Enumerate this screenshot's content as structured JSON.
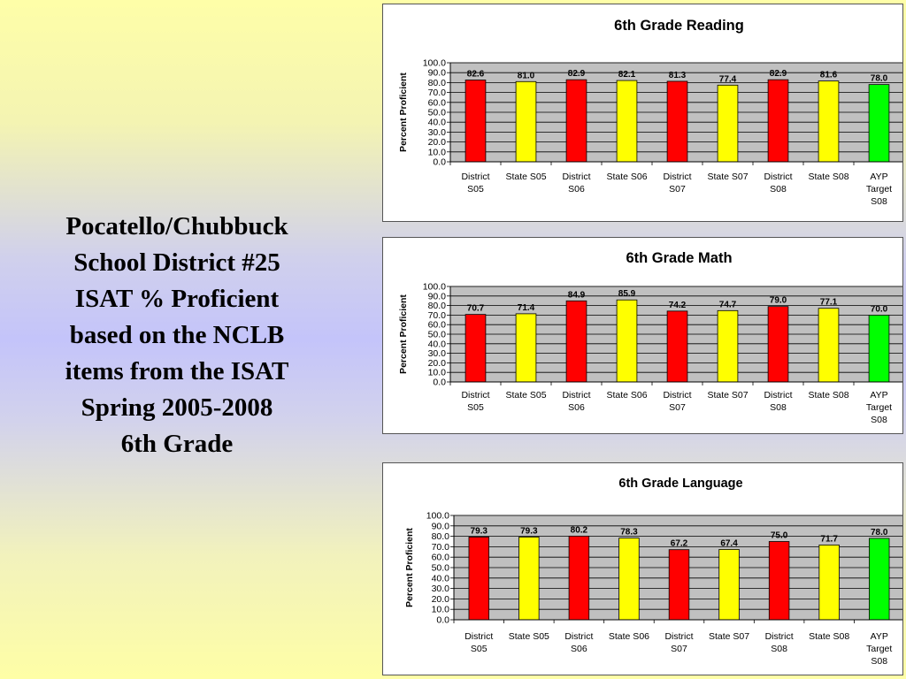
{
  "slide": {
    "title_lines": [
      "Pocatello/Chubbuck",
      "School District #25",
      "ISAT % Proficient",
      "based on the NCLB",
      "items from the ISAT",
      "Spring 2005-2008",
      "6th Grade"
    ]
  },
  "colors": {
    "district": "#ff0000",
    "state": "#ffff00",
    "target": "#00ff00",
    "plot_background": "#c0c0c0"
  },
  "chart_data": [
    {
      "type": "bar",
      "title": "6th Grade Reading",
      "xlabel": "",
      "ylabel": "Percent Proficient",
      "ylim": [
        0,
        100
      ],
      "yticks": [
        "100.0",
        "90.0",
        "80.0",
        "70.0",
        "60.0",
        "50.0",
        "40.0",
        "30.0",
        "20.0",
        "10.0",
        "0.0"
      ],
      "grid": true,
      "categories": [
        [
          "District",
          "S05"
        ],
        [
          "State S05"
        ],
        [
          "District",
          "S06"
        ],
        [
          "State S06"
        ],
        [
          "District",
          "S07"
        ],
        [
          "State S07"
        ],
        [
          "District",
          "S08"
        ],
        [
          "State S08"
        ],
        [
          "AYP",
          "Target",
          "S08"
        ]
      ],
      "values": [
        82.6,
        81.0,
        82.9,
        82.1,
        81.3,
        77.4,
        82.9,
        81.6,
        78.0
      ],
      "value_labels": [
        "82.6",
        "81.0",
        "82.9",
        "82.1",
        "81.3",
        "77.4",
        "82.9",
        "81.6",
        "78.0"
      ],
      "bar_colors": [
        "district",
        "state",
        "district",
        "state",
        "district",
        "state",
        "district",
        "state",
        "target"
      ]
    },
    {
      "type": "bar",
      "title": "6th Grade Math",
      "xlabel": "",
      "ylabel": "Percent Proficient",
      "ylim": [
        0,
        100
      ],
      "yticks": [
        "100.0",
        "90.0",
        "80.0",
        "70.0",
        "60.0",
        "50.0",
        "40.0",
        "30.0",
        "20.0",
        "10.0",
        "0.0"
      ],
      "grid": true,
      "categories": [
        [
          "District",
          "S05"
        ],
        [
          "State S05"
        ],
        [
          "District",
          "S06"
        ],
        [
          "State S06"
        ],
        [
          "District",
          "S07"
        ],
        [
          "State S07"
        ],
        [
          "District",
          "S08"
        ],
        [
          "State S08"
        ],
        [
          "AYP",
          "Target",
          "S08"
        ]
      ],
      "values": [
        70.7,
        71.4,
        84.9,
        85.9,
        74.2,
        74.7,
        79.0,
        77.1,
        70.0
      ],
      "value_labels": [
        "70.7",
        "71.4",
        "84.9",
        "85.9",
        "74.2",
        "74.7",
        "79.0",
        "77.1",
        "70.0"
      ],
      "bar_colors": [
        "district",
        "state",
        "district",
        "state",
        "district",
        "state",
        "district",
        "state",
        "target"
      ]
    },
    {
      "type": "bar",
      "title": "6th Grade Language",
      "xlabel": "",
      "ylabel": "Percent Proficient",
      "ylim": [
        0,
        100
      ],
      "yticks": [
        "100.0",
        "90.0",
        "80.0",
        "70.0",
        "60.0",
        "50.0",
        "40.0",
        "30.0",
        "20.0",
        "10.0",
        "0.0"
      ],
      "grid": true,
      "categories": [
        [
          "District",
          "S05"
        ],
        [
          "State S05"
        ],
        [
          "District",
          "S06"
        ],
        [
          "State S06"
        ],
        [
          "District",
          "S07"
        ],
        [
          "State S07"
        ],
        [
          "District",
          "S08"
        ],
        [
          "State S08"
        ],
        [
          "AYP",
          "Target",
          "S08"
        ]
      ],
      "values": [
        79.3,
        79.3,
        80.2,
        78.3,
        67.2,
        67.4,
        75.0,
        71.7,
        78.0
      ],
      "value_labels": [
        "79.3",
        "79.3",
        "80.2",
        "78.3",
        "67.2",
        "67.4",
        "75.0",
        "71.7",
        "78.0"
      ],
      "bar_colors": [
        "district",
        "state",
        "district",
        "state",
        "district",
        "state",
        "district",
        "state",
        "target"
      ]
    }
  ]
}
